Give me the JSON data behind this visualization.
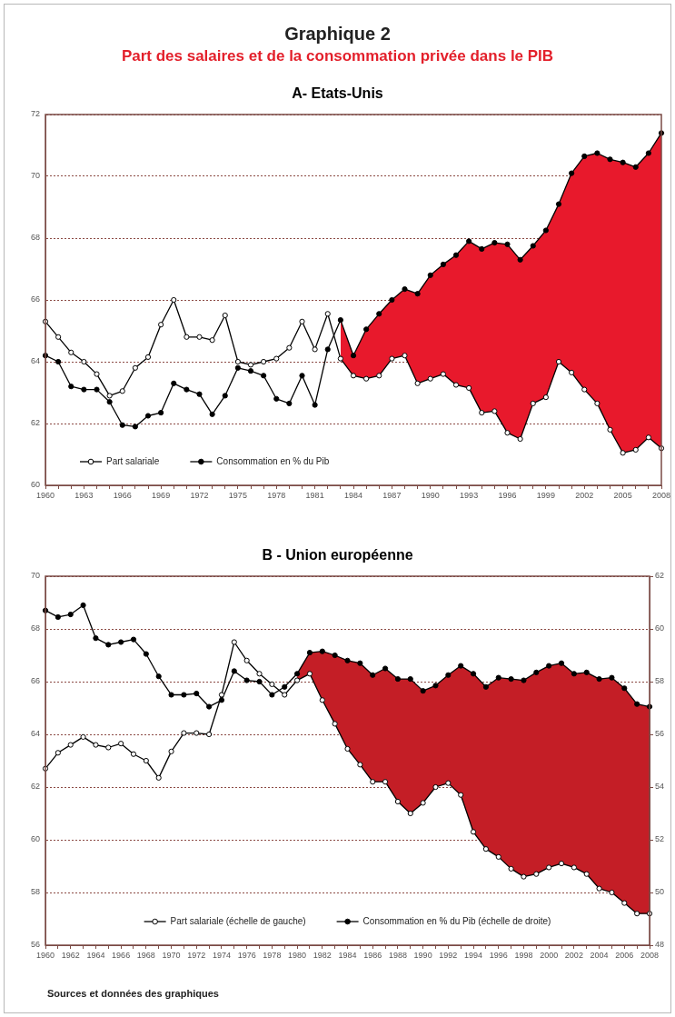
{
  "chart_data": [
    {
      "type": "other",
      "title": "Graphique 2",
      "subtitle": "Part des salaires et de la consommation privée dans le PIB"
    },
    {
      "type": "line",
      "title": "A- Etats-Unis",
      "categories": [
        "1960",
        null,
        null,
        "1963",
        null,
        null,
        "1966",
        null,
        null,
        "1969",
        null,
        null,
        "1972",
        null,
        null,
        "1975",
        null,
        null,
        "1978",
        null,
        null,
        "1981",
        null,
        null,
        "1984",
        null,
        null,
        "1987",
        null,
        null,
        "1990",
        null,
        null,
        "1993",
        null,
        null,
        "1996",
        null,
        null,
        "1999",
        null,
        null,
        "2002",
        null,
        null,
        "2005",
        null,
        null,
        "2008"
      ],
      "series": [
        {
          "type": "area",
          "color": "#e8192c",
          "values": [
            null,
            null,
            null,
            null,
            null,
            null,
            null,
            null,
            null,
            null,
            null,
            null,
            null,
            null,
            null,
            null,
            null,
            null,
            null,
            null,
            null,
            null,
            null,
            65.35,
            64.2,
            65.05,
            65.55,
            66.0,
            66.35,
            66.2,
            66.8,
            67.15,
            67.45,
            67.9,
            67.65,
            67.85,
            67.8,
            67.3,
            67.75,
            68.25,
            69.1,
            70.1,
            70.65,
            70.75,
            70.55,
            70.45,
            70.3,
            70.75,
            71.4
          ]
        },
        {
          "name": "Part salariale",
          "type": "line",
          "marker": "circle",
          "color": "#000000",
          "values": [
            65.3,
            64.8,
            64.3,
            64.0,
            63.6,
            62.9,
            63.05,
            63.8,
            64.15,
            65.2,
            66.0,
            64.8,
            64.8,
            64.7,
            65.5,
            64.0,
            63.9,
            64.0,
            64.1,
            64.45,
            65.3,
            64.4,
            65.55,
            64.1,
            63.55,
            63.45,
            63.55,
            64.1,
            64.2,
            63.3,
            63.45,
            63.6,
            63.25,
            63.15,
            62.35,
            62.4,
            61.7,
            61.5,
            62.65,
            62.85,
            64.0,
            63.65,
            63.1,
            62.65,
            61.8,
            61.05,
            61.15,
            61.55,
            61.2
          ]
        },
        {
          "name": "Consommation en % du Pib",
          "type": "line",
          "marker": "circle",
          "color": "#000000",
          "values": [
            64.2,
            64.0,
            63.2,
            63.1,
            63.1,
            62.7,
            61.95,
            61.9,
            62.25,
            62.35,
            63.3,
            63.1,
            62.95,
            62.3,
            62.9,
            63.8,
            63.7,
            63.55,
            62.8,
            62.65,
            63.55,
            62.6,
            64.4,
            65.35,
            64.2,
            65.05,
            65.55,
            66.0,
            66.35,
            66.2,
            66.8,
            67.15,
            67.45,
            67.9,
            67.65,
            67.85,
            67.8,
            67.3,
            67.75,
            68.25,
            69.1,
            70.1,
            70.65,
            70.75,
            70.55,
            70.45,
            70.3,
            70.75,
            71.4
          ]
        }
      ],
      "ylim": [
        60,
        72
      ],
      "yticks": [
        60,
        62,
        64,
        66,
        68,
        70,
        72
      ],
      "grid": "y",
      "legend": "bottom left"
    },
    {
      "type": "line",
      "title": "B - Union européenne",
      "categories": [
        "1960",
        null,
        "1962",
        null,
        "1964",
        null,
        "1966",
        null,
        "1968",
        null,
        "1970",
        null,
        "1972",
        null,
        "1974",
        null,
        "1976",
        null,
        "1978",
        null,
        "1980",
        null,
        "1982",
        null,
        "1984",
        null,
        "1986",
        null,
        "1988",
        null,
        "1990",
        null,
        "1992",
        null,
        "1994",
        null,
        "1996",
        null,
        "1998",
        null,
        "2000",
        null,
        "2002",
        null,
        "2004",
        null,
        "2006",
        null,
        "2008"
      ],
      "series": [
        {
          "type": "area",
          "axis": "y2",
          "color": "#c41e26",
          "values": [
            null,
            null,
            null,
            null,
            null,
            null,
            null,
            null,
            null,
            null,
            null,
            null,
            null,
            null,
            null,
            null,
            null,
            null,
            null,
            null,
            58.3,
            59.1,
            59.15,
            59.0,
            58.8,
            58.7,
            58.25,
            58.5,
            58.1,
            58.1,
            57.65,
            57.85,
            58.25,
            58.6,
            58.3,
            57.8,
            58.15,
            58.1,
            58.05,
            58.35,
            58.6,
            58.7,
            58.3,
            58.35,
            58.1,
            58.15,
            57.75,
            57.15,
            57.05
          ]
        },
        {
          "name": "Part salariale (échelle de gauche)",
          "type": "line",
          "marker": "circle",
          "color": "#000000",
          "values": [
            62.7,
            63.3,
            63.6,
            63.9,
            63.6,
            63.5,
            63.65,
            63.25,
            63.0,
            62.35,
            63.35,
            64.05,
            64.05,
            64.0,
            65.5,
            67.5,
            66.8,
            66.3,
            65.9,
            65.5,
            66.05,
            66.3,
            65.3,
            64.4,
            63.45,
            62.85,
            62.2,
            62.2,
            61.45,
            61.0,
            61.4,
            62.0,
            62.15,
            61.7,
            60.3,
            59.65,
            59.35,
            58.9,
            58.6,
            58.7,
            58.95,
            59.1,
            58.95,
            58.7,
            58.15,
            58.0,
            57.6,
            57.2,
            57.2
          ]
        },
        {
          "name": "Consommation en % du Pib (échelle de droite)",
          "type": "line",
          "marker": "circle",
          "axis": "y2",
          "color": "#000000",
          "values": [
            60.7,
            60.45,
            60.55,
            60.9,
            59.65,
            59.4,
            59.5,
            59.6,
            59.05,
            58.2,
            57.5,
            57.5,
            57.55,
            57.05,
            57.3,
            58.4,
            58.05,
            58.0,
            57.5,
            57.8,
            58.3,
            59.1,
            59.15,
            59.0,
            58.8,
            58.7,
            58.25,
            58.5,
            58.1,
            58.1,
            57.65,
            57.85,
            58.25,
            58.6,
            58.3,
            57.8,
            58.15,
            58.1,
            58.05,
            58.35,
            58.6,
            58.7,
            58.3,
            58.35,
            58.1,
            58.15,
            57.75,
            57.15,
            57.05
          ]
        }
      ],
      "ylim": [
        56,
        70
      ],
      "yticks": [
        56,
        58,
        60,
        62,
        64,
        66,
        68,
        70
      ],
      "y2lim": [
        48,
        62
      ],
      "y2ticks": [
        48,
        50,
        52,
        54,
        56,
        58,
        60,
        62
      ],
      "grid": "y",
      "legend": "bottom",
      "annotations": [
        "Sources et données des graphiques"
      ]
    }
  ]
}
